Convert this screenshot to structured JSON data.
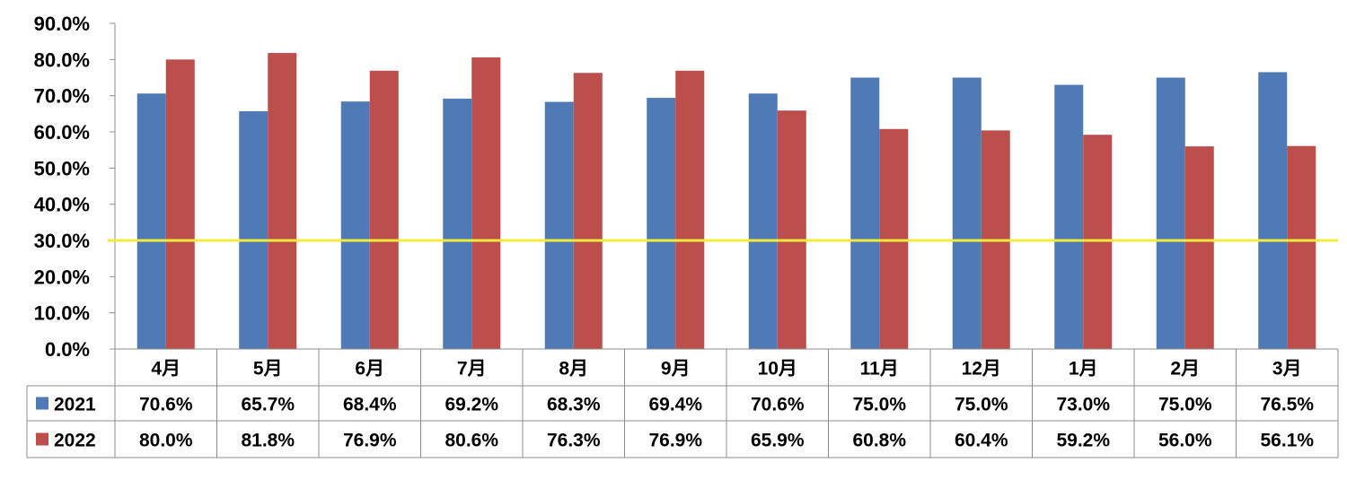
{
  "chart_data": {
    "type": "bar",
    "categories": [
      "4月",
      "5月",
      "6月",
      "7月",
      "8月",
      "9月",
      "10月",
      "11月",
      "12月",
      "1月",
      "2月",
      "3月"
    ],
    "series": [
      {
        "name": "2021",
        "color": "#4F7AB5",
        "values": [
          70.6,
          65.7,
          68.4,
          69.2,
          68.3,
          69.4,
          70.6,
          75.0,
          75.0,
          73.0,
          75.0,
          76.5
        ],
        "labels": [
          "70.6%",
          "65.7%",
          "68.4%",
          "69.2%",
          "68.3%",
          "69.4%",
          "70.6%",
          "75.0%",
          "75.0%",
          "73.0%",
          "75.0%",
          "76.5%"
        ]
      },
      {
        "name": "2022",
        "color": "#BC4E4C",
        "values": [
          80.0,
          81.8,
          76.9,
          80.6,
          76.3,
          76.9,
          65.9,
          60.8,
          60.4,
          59.2,
          56.0,
          56.1
        ],
        "labels": [
          "80.0%",
          "81.8%",
          "76.9%",
          "80.6%",
          "76.3%",
          "76.9%",
          "65.9%",
          "60.8%",
          "60.4%",
          "59.2%",
          "56.0%",
          "56.1%"
        ]
      }
    ],
    "ylim": [
      0,
      90
    ],
    "yticks": [
      "0.0%",
      "10.0%",
      "20.0%",
      "30.0%",
      "40.0%",
      "50.0%",
      "60.0%",
      "70.0%",
      "80.0%",
      "90.0%"
    ],
    "reference_line": {
      "value": 30,
      "color": "#F3EA3C"
    },
    "grid": false,
    "legend": "data-table"
  }
}
